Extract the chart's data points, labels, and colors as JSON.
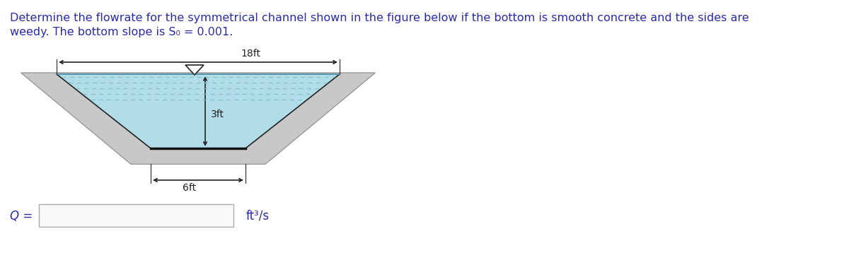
{
  "title_line1": "Determine the flowrate for the symmetrical channel shown in the figure below if the bottom is smooth concrete and the sides are",
  "title_line2": "weedy. The bottom slope is S₀ = 0.001.",
  "title_color": "#2a2aaa",
  "title_fontsize": 11.5,
  "background_color": "#ffffff",
  "channel": {
    "wall_color": "#c8c8c8",
    "wall_edge_color": "#999999",
    "water_color": "#b0dde8",
    "water_line_color": "#5a9ab0",
    "pattern_color": "#80c0cc",
    "outline_color": "#222222"
  },
  "label_18ft": "18ft",
  "label_6ft": "6ft",
  "label_3ft": "3ft",
  "label_Q": "Q =",
  "label_units": "ft³/s",
  "arrow_color": "#222222",
  "dim_color": "#444444"
}
